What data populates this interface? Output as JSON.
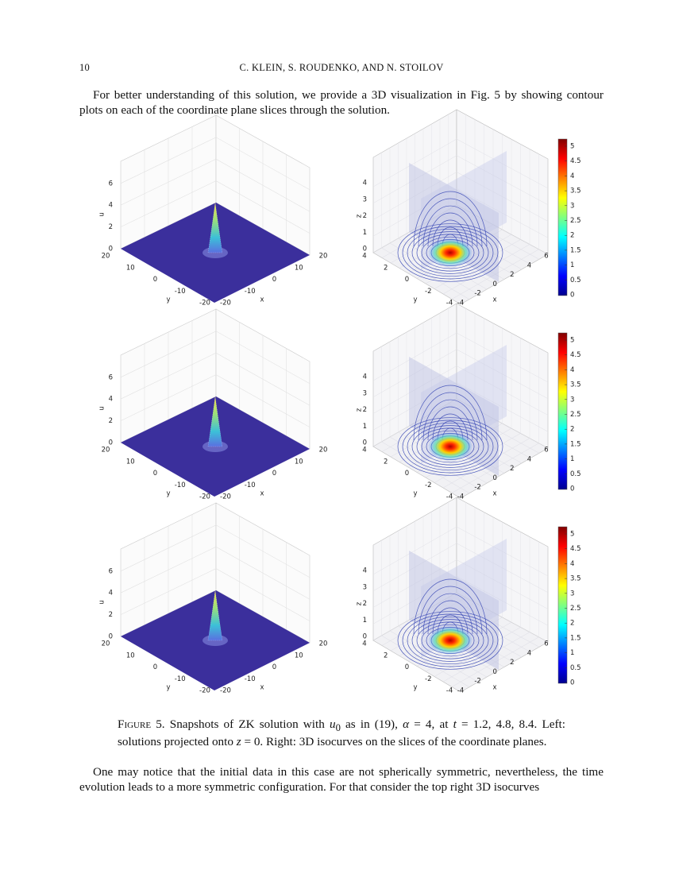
{
  "header": {
    "page_number": "10",
    "running_title": "C. KLEIN, S. ROUDENKO, AND N. STOILOV"
  },
  "paragraphs": [
    "For better understanding of this solution, we provide a 3D visualization in Fig. 5 by showing contour plots on each of the coordinate plane slices through the solution.",
    "One may notice that the initial data in this case are not spherically symmetric, nevertheless, the time evolution leads to a more symmetric configuration. For that consider the top right 3D isocurves"
  ],
  "figure": {
    "left_axes": {
      "u_label": "u",
      "y_label": "y",
      "x_label": "x",
      "u_ticks": [
        0,
        2,
        4,
        6
      ],
      "y_ticks": [
        20,
        10,
        0,
        -10,
        -20
      ],
      "x_ticks": [
        -20,
        -10,
        0,
        10,
        20
      ]
    },
    "right_axes": {
      "z_label": "z",
      "y_label": "y",
      "x_label": "x",
      "z_ticks": [
        0,
        1,
        2,
        3,
        4
      ],
      "y_ticks": [
        4,
        2,
        0,
        -2,
        -4
      ],
      "x_ticks": [
        -4,
        -2,
        0,
        2,
        4,
        6
      ]
    },
    "colorbar_ticks": [
      0,
      0.5,
      1,
      1.5,
      2,
      2.5,
      3,
      3.5,
      4,
      4.5,
      5
    ],
    "caption": {
      "label": "Figure 5.",
      "parts": [
        "Snapshots of ZK solution with ",
        "u",
        "0",
        " as in (19), ",
        "α",
        " = 4, at ",
        "t",
        " = 1.2, 4.8, 8.4. Left: solutions projected onto ",
        "z",
        " = 0. Right: 3D isocurves on the slices of the coordinate planes."
      ]
    }
  }
}
